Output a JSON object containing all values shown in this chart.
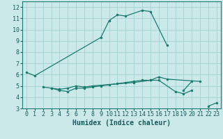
{
  "title": "",
  "xlabel": "Humidex (Indice chaleur)",
  "ylabel": "",
  "background_color": "#cce9e9",
  "grid_color": "#aad4d4",
  "line_color": "#1a7a6e",
  "xlim": [
    -0.5,
    23.5
  ],
  "ylim": [
    3,
    12.5
  ],
  "yticks": [
    3,
    4,
    5,
    6,
    7,
    8,
    9,
    10,
    11,
    12
  ],
  "xticks": [
    0,
    1,
    2,
    3,
    4,
    5,
    6,
    7,
    8,
    9,
    10,
    11,
    12,
    13,
    14,
    15,
    16,
    17,
    18,
    19,
    20,
    21,
    22,
    23
  ],
  "series": [
    {
      "x": [
        0,
        1,
        9,
        10,
        11,
        12,
        14,
        15,
        17
      ],
      "y": [
        6.2,
        5.9,
        9.3,
        10.8,
        11.3,
        11.2,
        11.7,
        11.6,
        8.6
      ]
    },
    {
      "x": [
        2,
        3,
        4,
        5,
        6,
        7,
        8,
        13,
        15,
        16,
        17,
        21
      ],
      "y": [
        4.9,
        4.8,
        4.7,
        4.8,
        5.0,
        4.9,
        5.0,
        5.3,
        5.5,
        5.8,
        5.6,
        5.4
      ]
    },
    {
      "x": [
        3,
        4,
        5,
        6,
        7,
        8,
        9,
        10,
        11,
        12,
        13,
        14,
        15,
        16,
        18,
        19,
        20
      ],
      "y": [
        4.8,
        4.6,
        4.5,
        4.8,
        4.8,
        4.9,
        5.0,
        5.1,
        5.2,
        5.3,
        5.4,
        5.5,
        5.5,
        5.5,
        4.5,
        4.3,
        4.6
      ]
    },
    {
      "x": [
        22,
        23
      ],
      "y": [
        3.2,
        3.5
      ]
    },
    {
      "x": [
        19,
        20
      ],
      "y": [
        4.6,
        5.4
      ]
    }
  ]
}
